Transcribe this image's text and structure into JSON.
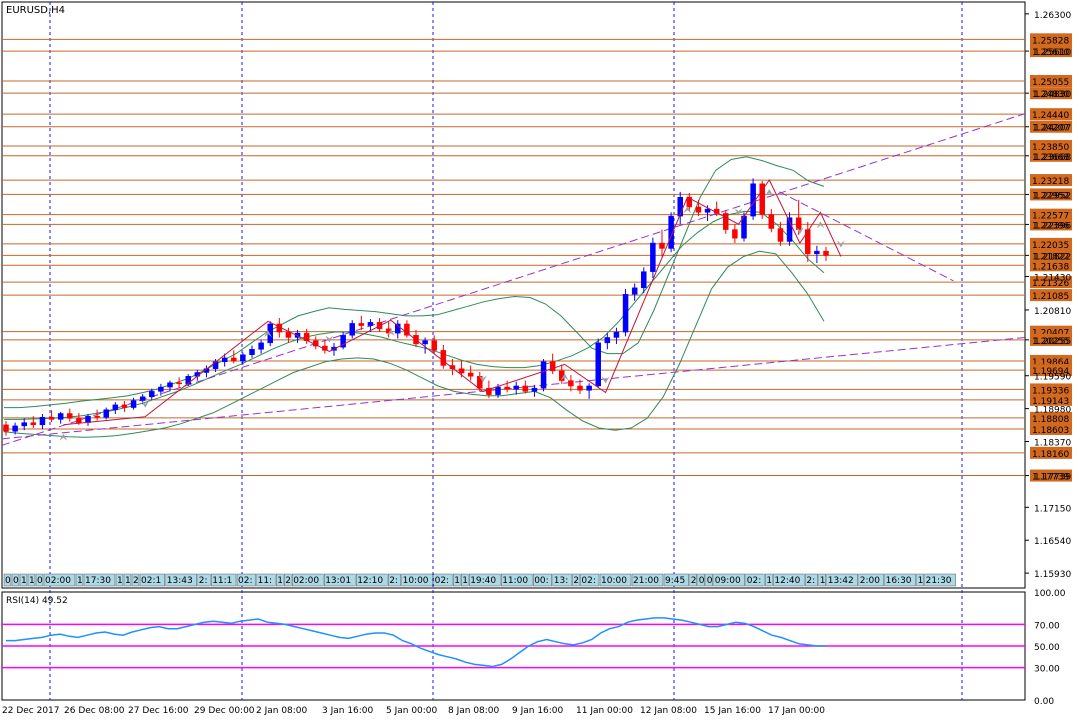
{
  "window": {
    "symbol_label": "EURUSD,H4",
    "rsi_label": "RSI(14) 49.52"
  },
  "price_axis": {
    "max": 1.2652,
    "min": 1.15654,
    "ticks": [
      "1.26300",
      "1.25610",
      "1.24830",
      "1.24207",
      "1.23668",
      "1.22952",
      "1.22396",
      "1.21822",
      "1.21430",
      "1.20810",
      "1.20255",
      "1.19590",
      "1.18980",
      "1.18370",
      "1.17739",
      "1.17150",
      "1.16540",
      "1.15930"
    ]
  },
  "levels": [
    {
      "price": "1.25828",
      "value": 1.25828
    },
    {
      "price": "1.25610",
      "value": 1.2561
    },
    {
      "price": "1.25055",
      "value": 1.25055
    },
    {
      "price": "1.24830",
      "value": 1.2483
    },
    {
      "price": "1.24440",
      "value": 1.2444
    },
    {
      "price": "1.24207",
      "value": 1.24207
    },
    {
      "price": "1.23850",
      "value": 1.2385
    },
    {
      "price": "1.23668",
      "value": 1.23668
    },
    {
      "price": "1.23218",
      "value": 1.23218
    },
    {
      "price": "1.22952",
      "value": 1.22952
    },
    {
      "price": "1.22577",
      "value": 1.22577
    },
    {
      "price": "1.22396",
      "value": 1.22396
    },
    {
      "price": "1.22035",
      "value": 1.22035
    },
    {
      "price": "1.21822",
      "value": 1.21822
    },
    {
      "price": "1.21638",
      "value": 1.21638
    },
    {
      "price": "1.21326",
      "value": 1.21326
    },
    {
      "price": "1.21085",
      "value": 1.21085
    },
    {
      "price": "1.20407",
      "value": 1.20407
    },
    {
      "price": "1.20255",
      "value": 1.20255
    },
    {
      "price": "1.19864",
      "value": 1.19864
    },
    {
      "price": "1.19694",
      "value": 1.19694
    },
    {
      "price": "1.19336",
      "value": 1.19336
    },
    {
      "price": "1.19143",
      "value": 1.19143
    },
    {
      "price": "1.18808",
      "value": 1.18808
    },
    {
      "price": "1.18603",
      "value": 1.18603
    },
    {
      "price": "1.18160",
      "value": 1.1816
    },
    {
      "price": "1.17739",
      "value": 1.17739
    }
  ],
  "rsi_axis": {
    "ticks": [
      "100.00",
      "70.00",
      "50.00",
      "30.00",
      "0.00"
    ],
    "levels": [
      70,
      50,
      30
    ]
  },
  "time_axis": [
    "22 Dec 2017",
    "26 Dec 08:00",
    "27 Dec 16:00",
    "29 Dec 00:00",
    "2 Jan 08:00",
    "3 Jan 16:00",
    "5 Jan 00:00",
    "8 Jan 08:00",
    "9 Jan 16:00",
    "11 Jan 00:00",
    "12 Jan 08:00",
    "15 Jan 16:00",
    "17 Jan 00:00"
  ],
  "time_strip": [
    "0",
    "0",
    "1",
    "1",
    "0",
    "02:00",
    "1",
    "17:30",
    "1",
    "1",
    "2",
    "02:1",
    "13:43",
    "2:",
    "11:1",
    "02:",
    "11:",
    "1",
    "2",
    "02:00",
    "13:01",
    "12:10",
    "2:",
    "10:00",
    "02:",
    "1",
    "1",
    "19:40",
    "11:00",
    "00:",
    "13:",
    "2",
    "02:",
    "10:00",
    "21:00",
    "9:45",
    "2",
    "0",
    "0",
    "09:00",
    "02:",
    "1",
    "12:40",
    "2:",
    "1",
    "13:42",
    "2:00",
    "16:30",
    "1",
    "21:30"
  ],
  "chart_data": {
    "type": "candlestick",
    "ohlc": [
      [
        1.1868,
        1.1875,
        1.1848,
        1.1856
      ],
      [
        1.1856,
        1.1872,
        1.185,
        1.1866
      ],
      [
        1.1866,
        1.188,
        1.1858,
        1.1872
      ],
      [
        1.1872,
        1.1884,
        1.1862,
        1.1868
      ],
      [
        1.1868,
        1.1888,
        1.186,
        1.1882
      ],
      [
        1.1882,
        1.1895,
        1.1873,
        1.1878
      ],
      [
        1.1878,
        1.1892,
        1.187,
        1.1889
      ],
      [
        1.1889,
        1.1898,
        1.1874,
        1.188
      ],
      [
        1.188,
        1.189,
        1.1868,
        1.1872
      ],
      [
        1.1872,
        1.1888,
        1.1866,
        1.1884
      ],
      [
        1.1884,
        1.1896,
        1.1876,
        1.1882
      ],
      [
        1.1882,
        1.19,
        1.1878,
        1.1896
      ],
      [
        1.1896,
        1.191,
        1.1888,
        1.1905
      ],
      [
        1.1905,
        1.1912,
        1.1892,
        1.19
      ],
      [
        1.19,
        1.1918,
        1.1896,
        1.1913
      ],
      [
        1.1913,
        1.1925,
        1.1906,
        1.192
      ],
      [
        1.192,
        1.1935,
        1.1914,
        1.193
      ],
      [
        1.193,
        1.1944,
        1.1922,
        1.1938
      ],
      [
        1.1938,
        1.195,
        1.193,
        1.1946
      ],
      [
        1.1946,
        1.1956,
        1.1936,
        1.1944
      ],
      [
        1.1944,
        1.1962,
        1.194,
        1.1958
      ],
      [
        1.1958,
        1.197,
        1.195,
        1.1965
      ],
      [
        1.1965,
        1.1978,
        1.1956,
        1.1972
      ],
      [
        1.1972,
        1.199,
        1.1966,
        1.1985
      ],
      [
        1.1985,
        1.2,
        1.1976,
        1.1992
      ],
      [
        1.1992,
        1.2006,
        1.1982,
        1.1986
      ],
      [
        1.1986,
        1.2002,
        1.198,
        1.1998
      ],
      [
        1.1998,
        1.2015,
        1.1992,
        1.2008
      ],
      [
        1.2008,
        1.2026,
        1.2,
        1.202
      ],
      [
        1.202,
        1.206,
        1.2014,
        1.2055
      ],
      [
        1.2055,
        1.2066,
        1.203,
        1.204
      ],
      [
        1.204,
        1.2048,
        1.202,
        1.203
      ],
      [
        1.203,
        1.2044,
        1.202,
        1.2038
      ],
      [
        1.2038,
        1.2046,
        1.2018,
        1.2024
      ],
      [
        1.2024,
        1.2032,
        1.2008,
        1.2014
      ],
      [
        1.2014,
        1.2026,
        1.2,
        1.2006
      ],
      [
        1.2006,
        1.202,
        1.1996,
        1.2012
      ],
      [
        1.2012,
        1.204,
        1.2008,
        1.2034
      ],
      [
        1.2034,
        1.2062,
        1.2028,
        1.2056
      ],
      [
        1.2056,
        1.207,
        1.2044,
        1.2052
      ],
      [
        1.2052,
        1.2064,
        1.204,
        1.2058
      ],
      [
        1.2058,
        1.2066,
        1.204,
        1.2046
      ],
      [
        1.2046,
        1.206,
        1.203,
        1.2038
      ],
      [
        1.2038,
        1.2062,
        1.2028,
        1.2055
      ],
      [
        1.2055,
        1.2062,
        1.203,
        1.2034
      ],
      [
        1.2034,
        1.2044,
        1.2012,
        1.2018
      ],
      [
        1.2018,
        1.203,
        1.2,
        1.2024
      ],
      [
        1.2024,
        1.2034,
        1.2,
        1.2006
      ],
      [
        1.2006,
        1.2016,
        1.1972,
        1.1978
      ],
      [
        1.1978,
        1.199,
        1.196,
        1.1972
      ],
      [
        1.1972,
        1.1986,
        1.1956,
        1.1964
      ],
      [
        1.1964,
        1.1978,
        1.195,
        1.1958
      ],
      [
        1.1958,
        1.1966,
        1.193,
        1.1936
      ],
      [
        1.1936,
        1.195,
        1.1918,
        1.1924
      ],
      [
        1.1924,
        1.1944,
        1.1918,
        1.1938
      ],
      [
        1.1938,
        1.195,
        1.1928,
        1.1934
      ],
      [
        1.1934,
        1.1948,
        1.1924,
        1.194
      ],
      [
        1.194,
        1.195,
        1.1926,
        1.193
      ],
      [
        1.193,
        1.1942,
        1.192,
        1.1936
      ],
      [
        1.1936,
        1.199,
        1.193,
        1.1985
      ],
      [
        1.1985,
        1.2,
        1.1962,
        1.1968
      ],
      [
        1.1968,
        1.198,
        1.1944,
        1.195
      ],
      [
        1.195,
        1.196,
        1.193,
        1.194
      ],
      [
        1.194,
        1.1952,
        1.1925,
        1.1932
      ],
      [
        1.1932,
        1.1945,
        1.1916,
        1.194
      ],
      [
        1.194,
        1.2028,
        1.1936,
        1.202
      ],
      [
        1.202,
        1.2038,
        1.2008,
        1.203
      ],
      [
        1.203,
        1.2048,
        1.2018,
        1.204
      ],
      [
        1.204,
        1.212,
        1.2032,
        1.211
      ],
      [
        1.211,
        1.213,
        1.2098,
        1.2122
      ],
      [
        1.2122,
        1.216,
        1.2112,
        1.2152
      ],
      [
        1.2152,
        1.2215,
        1.214,
        1.2205
      ],
      [
        1.2205,
        1.223,
        1.218,
        1.2195
      ],
      [
        1.2195,
        1.2262,
        1.2188,
        1.2255
      ],
      [
        1.2255,
        1.23,
        1.224,
        1.229
      ],
      [
        1.229,
        1.2298,
        1.2265,
        1.2272
      ],
      [
        1.2272,
        1.2285,
        1.2255,
        1.2262
      ],
      [
        1.2262,
        1.2275,
        1.2246,
        1.2268
      ],
      [
        1.2268,
        1.2282,
        1.2255,
        1.226
      ],
      [
        1.226,
        1.2266,
        1.2222,
        1.223
      ],
      [
        1.223,
        1.224,
        1.2205,
        1.2214
      ],
      [
        1.2214,
        1.2262,
        1.2208,
        1.2255
      ],
      [
        1.2255,
        1.2325,
        1.2248,
        1.2315
      ],
      [
        1.2315,
        1.232,
        1.225,
        1.2258
      ],
      [
        1.2258,
        1.2268,
        1.2225,
        1.2232
      ],
      [
        1.2232,
        1.2244,
        1.22,
        1.2208
      ],
      [
        1.2208,
        1.2262,
        1.22,
        1.2252
      ],
      [
        1.2252,
        1.2285,
        1.222,
        1.223
      ],
      [
        1.223,
        1.2244,
        1.217,
        1.2185
      ],
      [
        1.2185,
        1.22,
        1.2168,
        1.219
      ],
      [
        1.219,
        1.2198,
        1.2172,
        1.2182
      ]
    ],
    "upper_band": [
      1.19,
      1.19,
      1.1902,
      1.1905,
      1.1908,
      1.1912,
      1.1915,
      1.1918,
      1.1922,
      1.1928,
      1.1935,
      1.1945,
      1.1955,
      1.197,
      1.1985,
      1.2,
      1.202,
      1.204,
      1.2055,
      1.207,
      1.2078,
      1.2085,
      1.2082,
      1.208,
      1.2078,
      1.2074,
      1.207,
      1.207,
      1.2072,
      1.208,
      1.2088,
      1.2096,
      1.2102,
      1.2106,
      1.2104,
      1.2092,
      1.207,
      1.204,
      1.201,
      1.2,
      1.2,
      1.202,
      1.208,
      1.215,
      1.222,
      1.229,
      1.234,
      1.236,
      1.2365,
      1.2358,
      1.2348,
      1.234,
      1.232,
      1.231
    ],
    "middle_band": [
      1.1878,
      1.1878,
      1.1879,
      1.188,
      1.1882,
      1.1885,
      1.189,
      1.1895,
      1.1902,
      1.191,
      1.192,
      1.193,
      1.1942,
      1.1955,
      1.1968,
      1.198,
      1.1994,
      1.2008,
      1.202,
      1.203,
      1.2036,
      1.204,
      1.204,
      1.2036,
      1.203,
      1.2022,
      1.2015,
      1.2008,
      1.1998,
      1.1988,
      1.198,
      1.1976,
      1.1974,
      1.1974,
      1.1978,
      1.1986,
      1.1996,
      1.201,
      1.203,
      1.206,
      1.2095,
      1.213,
      1.2165,
      1.22,
      1.2225,
      1.2245,
      1.2258,
      1.2264,
      1.2262,
      1.224,
      1.221,
      1.2175,
      1.215
    ],
    "lower_band": [
      1.1855,
      1.1852,
      1.185,
      1.1848,
      1.1846,
      1.1845,
      1.1846,
      1.1848,
      1.1852,
      1.1857,
      1.1862,
      1.187,
      1.188,
      1.189,
      1.1905,
      1.192,
      1.1935,
      1.195,
      1.1965,
      1.1975,
      1.1985,
      1.199,
      1.1992,
      1.199,
      1.1982,
      1.197,
      1.1955,
      1.194,
      1.193,
      1.1925,
      1.1922,
      1.1922,
      1.1926,
      1.193,
      1.1918,
      1.1895,
      1.1875,
      1.1862,
      1.1858,
      1.1862,
      1.188,
      1.192,
      1.198,
      1.205,
      1.212,
      1.216,
      1.218,
      1.219,
      1.2185,
      1.215,
      1.211,
      1.206
    ],
    "trendlines": [
      {
        "from": [
          0,
          1.183
        ],
        "to": [
          1,
          1.2445
        ]
      },
      {
        "from": [
          0,
          1.1842
        ],
        "to": [
          1,
          1.203
        ]
      },
      {
        "from": [
          0.76,
          1.23
        ],
        "to": [
          0.93,
          1.2135
        ]
      }
    ],
    "zigzag": [
      [
        0.06,
        1.1868
      ],
      [
        0.14,
        1.1883
      ],
      [
        0.26,
        1.206
      ],
      [
        0.32,
        1.2004
      ],
      [
        0.38,
        1.2062
      ],
      [
        0.47,
        1.193
      ],
      [
        0.55,
        1.198
      ],
      [
        0.59,
        1.1928
      ],
      [
        0.67,
        1.229
      ],
      [
        0.72,
        1.224
      ],
      [
        0.75,
        1.2322
      ],
      [
        0.78,
        1.2205
      ],
      [
        0.8,
        1.2262
      ],
      [
        0.82,
        1.218
      ]
    ],
    "rsi": [
      55,
      55,
      56,
      57,
      58,
      60,
      61,
      59,
      58,
      60,
      62,
      63,
      61,
      60,
      63,
      65,
      67,
      68,
      66,
      66,
      68,
      70,
      72,
      73,
      72,
      71,
      73,
      74,
      75,
      72,
      71,
      70,
      68,
      66,
      64,
      62,
      60,
      58,
      57,
      59,
      61,
      62,
      62,
      60,
      55,
      52,
      48,
      45,
      42,
      40,
      38,
      35,
      33,
      32,
      31,
      33,
      38,
      44,
      50,
      54,
      56,
      54,
      52,
      51,
      53,
      56,
      62,
      66,
      68,
      72,
      74,
      75,
      76,
      76,
      75,
      74,
      72,
      70,
      68,
      68,
      70,
      72,
      71,
      68,
      64,
      60,
      58,
      55,
      52,
      51,
      50,
      50
    ]
  }
}
